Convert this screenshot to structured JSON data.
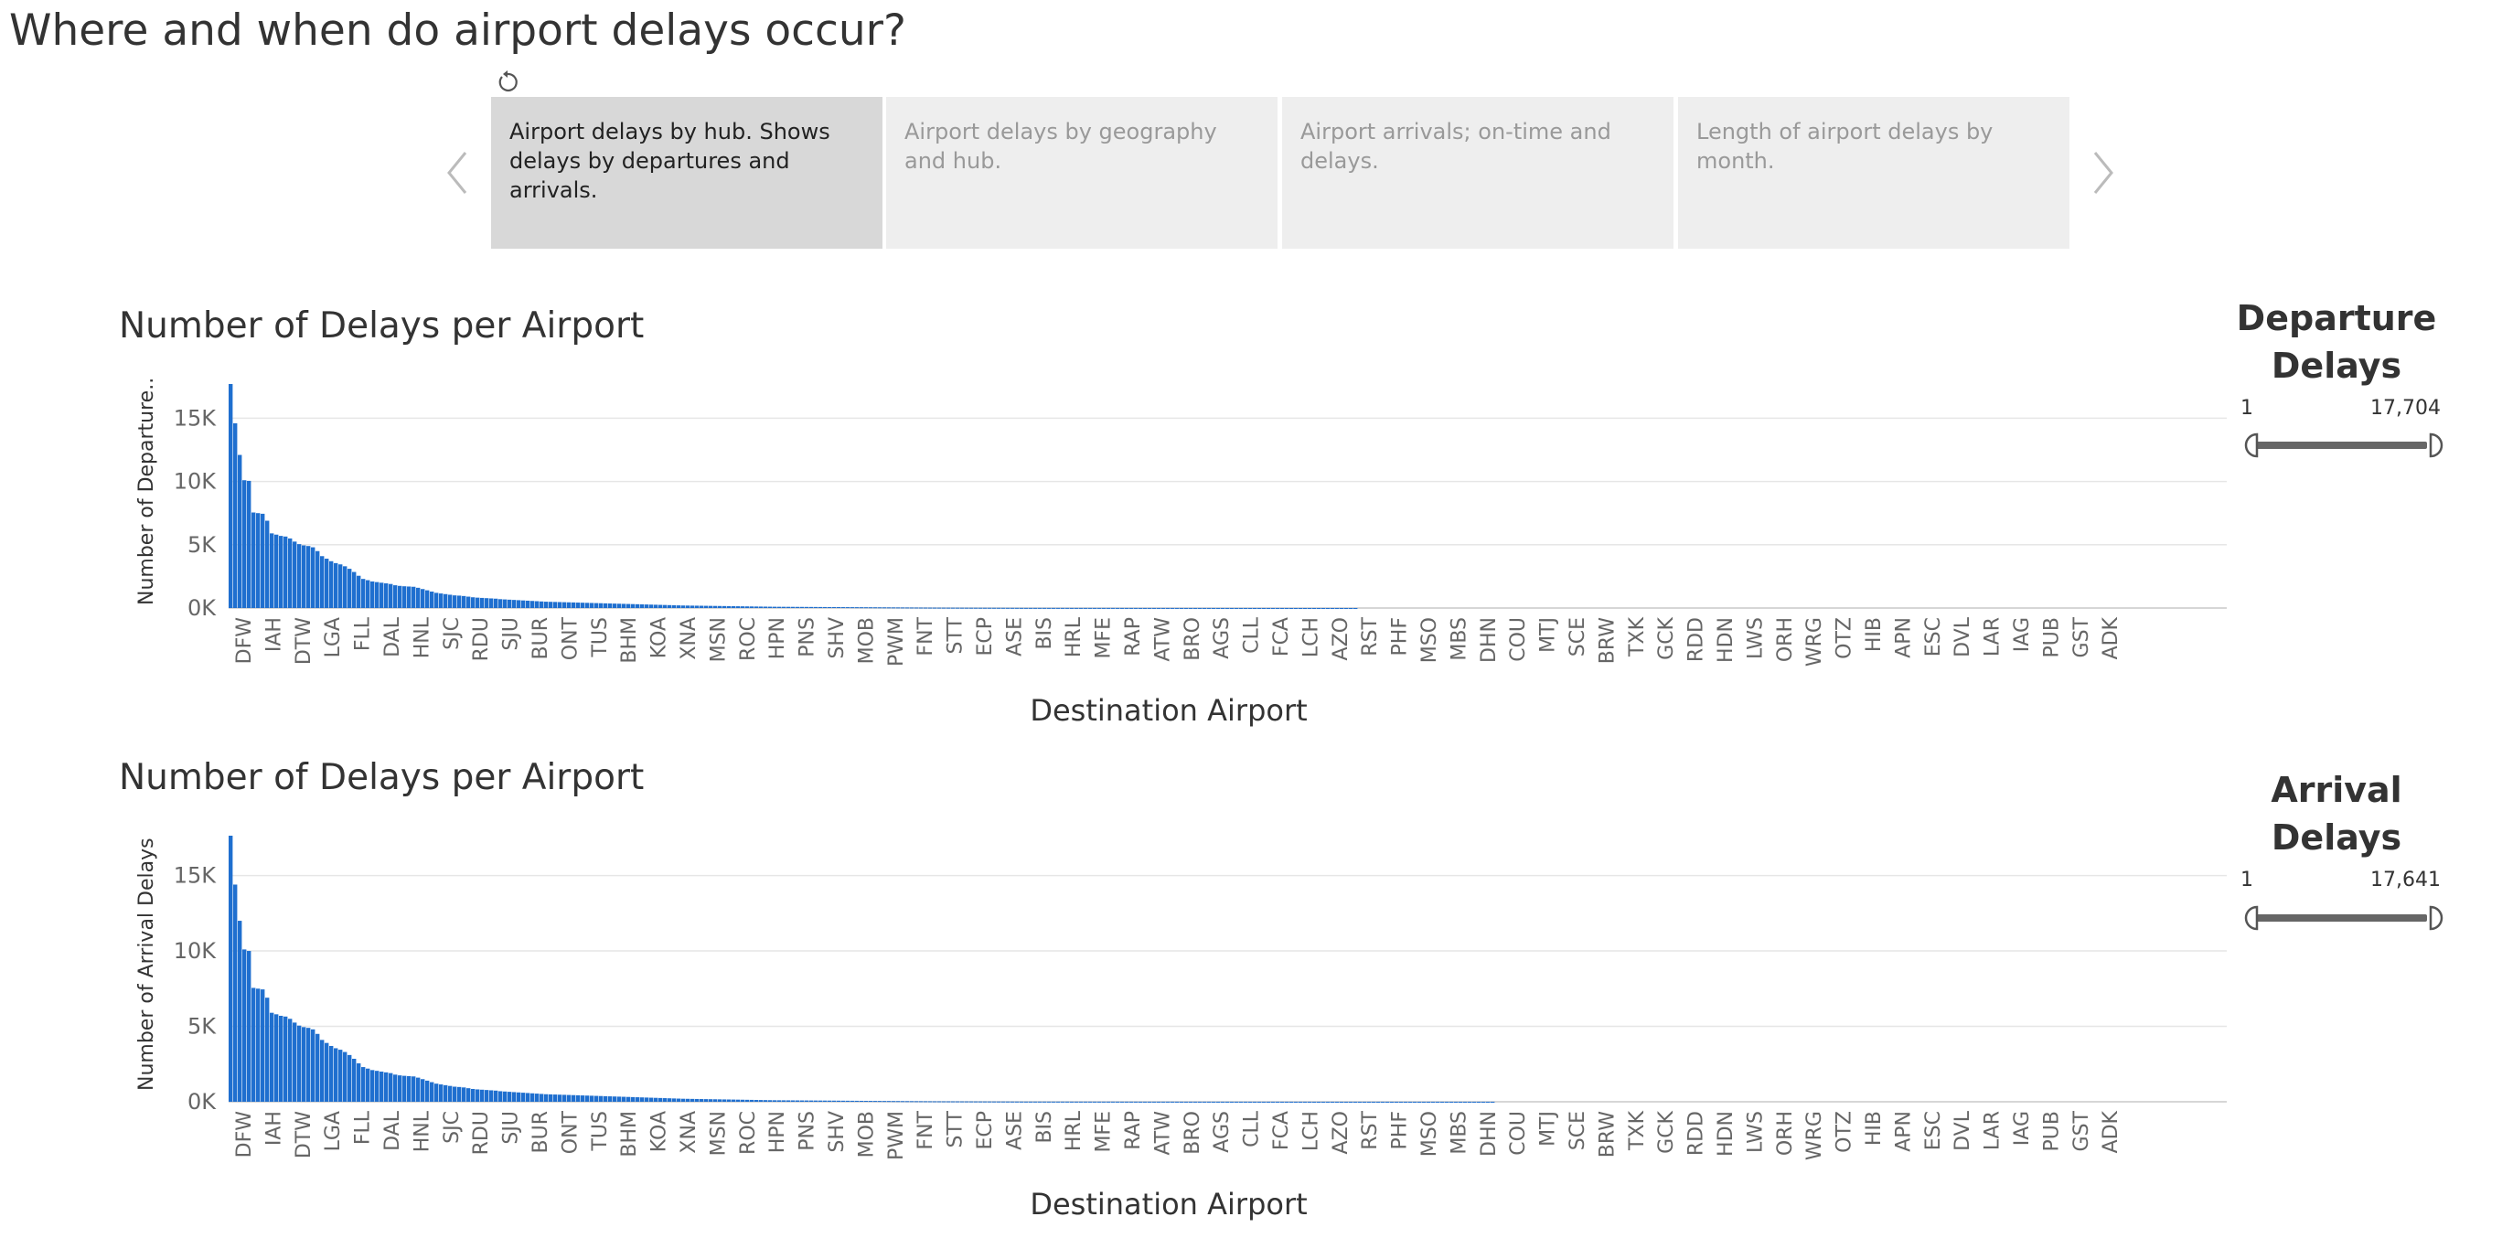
{
  "page_title": "Where and when do airport delays occur?",
  "icons": {
    "revert": "revert-icon",
    "prev": "chevron-left-icon",
    "next": "chevron-right-icon"
  },
  "story": {
    "points": [
      {
        "label": "Airport delays by hub. Shows delays by departures and arrivals.",
        "selected": true
      },
      {
        "label": "Airport delays by geography and hub.",
        "selected": false
      },
      {
        "label": "Airport arrivals; on-time and delays.",
        "selected": false
      },
      {
        "label": "Length of airport delays by month.",
        "selected": false
      }
    ]
  },
  "colors": {
    "bar": "#1f6fcf",
    "grid": "#e6e6e6",
    "axis_text": "#666666",
    "nav_arrow": "#bbbbbb"
  },
  "charts": [
    {
      "title": "Number of Delays per Airport",
      "ylabel": "Number of Departure..",
      "xlabel": "Destination Airport",
      "filter": {
        "title": "Departure Delays",
        "min_label": "1",
        "max_label": "17,704"
      }
    },
    {
      "title": "Number of Delays per Airport",
      "ylabel": "Number of Arrival Delays",
      "xlabel": "Destination Airport",
      "filter": {
        "title": "Arrival Delays",
        "min_label": "1",
        "max_label": "17,641"
      }
    }
  ],
  "chart_data": [
    {
      "type": "bar",
      "title": "Number of Delays per Airport",
      "xlabel": "Destination Airport",
      "ylabel": "Number of Departure..",
      "ylim": [
        0,
        17704
      ],
      "yticks": [
        0,
        5000,
        10000,
        15000
      ],
      "ytick_labels": [
        "0K",
        "5K",
        "10K",
        "15K"
      ],
      "x_tick_labels": [
        "DFW",
        "IAH",
        "DTW",
        "LGA",
        "FLL",
        "DAL",
        "HNL",
        "SJC",
        "RDU",
        "SJU",
        "BUR",
        "ONT",
        "TUS",
        "BHM",
        "KOA",
        "XNA",
        "MSN",
        "ROC",
        "HPN",
        "PNS",
        "SHV",
        "MOB",
        "PWM",
        "FNT",
        "STT",
        "ECP",
        "ASE",
        "BIS",
        "HRL",
        "MFE",
        "RAP",
        "ATW",
        "BRO",
        "AGS",
        "CLL",
        "FCA",
        "LCH",
        "AZO",
        "RST",
        "PHF",
        "MSO",
        "MBS",
        "DHN",
        "COU",
        "MTJ",
        "SCE",
        "BRW",
        "TXK",
        "GCK",
        "RDD",
        "HDN",
        "LWS",
        "ORH",
        "WRG",
        "OTZ",
        "HIB",
        "APN",
        "ESC",
        "DVL",
        "LAR",
        "IAG",
        "PUB",
        "GST",
        "ADK"
      ],
      "values": [
        17704,
        14600,
        12100,
        10100,
        10050,
        7550,
        7500,
        7450,
        6900,
        5900,
        5800,
        5700,
        5650,
        5500,
        5250,
        5050,
        4950,
        4900,
        4800,
        4500,
        4100,
        3900,
        3700,
        3550,
        3450,
        3300,
        3100,
        2850,
        2550,
        2300,
        2200,
        2100,
        2050,
        2000,
        1950,
        1900,
        1800,
        1750,
        1720,
        1700,
        1680,
        1600,
        1500,
        1400,
        1300,
        1200,
        1150,
        1100,
        1050,
        1000,
        980,
        950,
        900,
        850,
        820,
        800,
        780,
        760,
        740,
        700,
        680,
        660,
        640,
        620,
        600,
        580,
        560,
        540,
        520,
        500,
        490,
        480,
        470,
        460,
        450,
        440,
        430,
        420,
        410,
        400,
        390,
        380,
        370,
        360,
        350,
        340,
        330,
        320,
        310,
        300,
        290,
        280,
        270,
        260,
        250,
        240,
        230,
        220,
        210,
        200,
        195,
        190,
        185,
        180,
        175,
        170,
        165,
        160,
        155,
        150,
        145,
        140,
        135,
        130,
        125,
        120,
        115,
        110,
        105,
        100,
        98,
        96,
        94,
        92,
        90,
        88,
        86,
        84,
        82,
        80,
        78,
        76,
        74,
        72,
        70,
        68,
        66,
        64,
        62,
        60,
        58,
        56,
        54,
        52,
        50,
        48,
        46,
        44,
        42,
        40,
        38,
        36,
        34,
        32,
        30,
        29,
        28,
        27,
        26,
        25,
        24,
        23,
        22,
        21,
        20,
        19,
        18,
        17,
        16,
        15,
        14,
        13,
        12,
        11,
        10,
        10,
        10,
        10,
        10,
        9,
        9,
        9,
        9,
        9,
        8,
        8,
        8,
        8,
        8,
        7,
        7,
        7,
        7,
        7,
        6,
        6,
        6,
        6,
        6,
        5,
        5,
        5,
        5,
        5,
        5,
        5,
        5,
        4,
        4,
        4,
        4,
        4,
        4,
        4,
        4,
        3,
        3,
        3,
        3,
        3,
        3,
        3,
        3,
        2,
        2,
        2,
        2,
        2,
        2,
        2,
        2,
        2,
        1,
        1,
        1,
        1,
        1,
        1,
        1,
        1,
        1,
        1,
        1,
        1,
        1,
        1,
        1
      ]
    },
    {
      "type": "bar",
      "title": "Number of Delays per Airport",
      "xlabel": "Destination Airport",
      "ylabel": "Number of Arrival Delays",
      "ylim": [
        0,
        17641
      ],
      "yticks": [
        0,
        5000,
        10000,
        15000
      ],
      "ytick_labels": [
        "0K",
        "5K",
        "10K",
        "15K"
      ],
      "x_tick_labels": [
        "DFW",
        "IAH",
        "DTW",
        "LGA",
        "FLL",
        "DAL",
        "HNL",
        "SJC",
        "RDU",
        "SJU",
        "BUR",
        "ONT",
        "TUS",
        "BHM",
        "KOA",
        "XNA",
        "MSN",
        "ROC",
        "HPN",
        "PNS",
        "SHV",
        "MOB",
        "PWM",
        "FNT",
        "STT",
        "ECP",
        "ASE",
        "BIS",
        "HRL",
        "MFE",
        "RAP",
        "ATW",
        "BRO",
        "AGS",
        "CLL",
        "FCA",
        "LCH",
        "AZO",
        "RST",
        "PHF",
        "MSO",
        "MBS",
        "DHN",
        "COU",
        "MTJ",
        "SCE",
        "BRW",
        "TXK",
        "GCK",
        "RDD",
        "HDN",
        "LWS",
        "ORH",
        "WRG",
        "OTZ",
        "HIB",
        "APN",
        "ESC",
        "DVL",
        "LAR",
        "IAG",
        "PUB",
        "GST",
        "ADK"
      ],
      "values": [
        17641,
        14400,
        12000,
        10100,
        10000,
        7550,
        7500,
        7450,
        6900,
        5900,
        5800,
        5700,
        5650,
        5500,
        5250,
        5050,
        4950,
        4900,
        4800,
        4500,
        4100,
        3900,
        3700,
        3550,
        3450,
        3300,
        3100,
        2850,
        2550,
        2300,
        2200,
        2100,
        2050,
        2000,
        1950,
        1900,
        1800,
        1750,
        1720,
        1700,
        1680,
        1600,
        1500,
        1400,
        1300,
        1200,
        1150,
        1100,
        1050,
        1000,
        980,
        950,
        900,
        850,
        820,
        800,
        780,
        760,
        740,
        700,
        680,
        660,
        640,
        620,
        600,
        580,
        560,
        540,
        520,
        500,
        490,
        480,
        470,
        460,
        450,
        440,
        430,
        420,
        410,
        400,
        390,
        380,
        370,
        360,
        350,
        340,
        330,
        320,
        310,
        300,
        290,
        280,
        270,
        260,
        250,
        240,
        230,
        220,
        210,
        200,
        195,
        190,
        185,
        180,
        175,
        170,
        165,
        160,
        155,
        150,
        145,
        140,
        135,
        130,
        125,
        120,
        115,
        110,
        105,
        100,
        98,
        96,
        94,
        92,
        90,
        88,
        86,
        84,
        82,
        80,
        78,
        76,
        74,
        72,
        70,
        68,
        66,
        64,
        62,
        60,
        58,
        56,
        54,
        52,
        50,
        48,
        46,
        44,
        42,
        40,
        38,
        36,
        34,
        32,
        30,
        29,
        28,
        27,
        26,
        25,
        24,
        23,
        22,
        21,
        20,
        19,
        18,
        17,
        16,
        15,
        14,
        13,
        12,
        11,
        10,
        10,
        10,
        10,
        10,
        9,
        9,
        9,
        9,
        9,
        8,
        8,
        8,
        8,
        8,
        7,
        7,
        7,
        7,
        7,
        6,
        6,
        6,
        6,
        6,
        5,
        5,
        5,
        5,
        5,
        5,
        5,
        5,
        4,
        4,
        4,
        4,
        4,
        4,
        4,
        4,
        3,
        3,
        3,
        3,
        3,
        3,
        3,
        3,
        2,
        2,
        2,
        2,
        2,
        2,
        2,
        2,
        2,
        2,
        2,
        2,
        2,
        2,
        1,
        1,
        1,
        1,
        1,
        1,
        1,
        1,
        1,
        1,
        1,
        1,
        1,
        1,
        1,
        1,
        1,
        1,
        1,
        1,
        1,
        1,
        1,
        1,
        1,
        1,
        1,
        1,
        1,
        1,
        1,
        1,
        1,
        1,
        1,
        1,
        1,
        1,
        1,
        1
      ]
    }
  ]
}
